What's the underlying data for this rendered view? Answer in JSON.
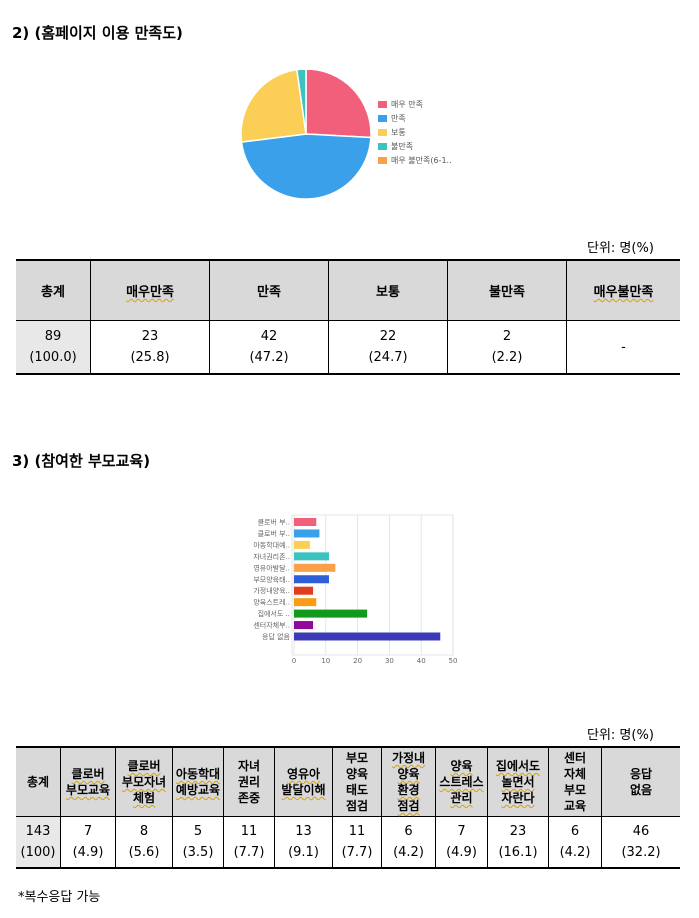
{
  "section1": {
    "heading": "2) (홈페이지 이용 만족도)",
    "unit": "단위:  명(%)",
    "table": {
      "headers": [
        "총계",
        "매우만족",
        "만족",
        "보통",
        "불만족",
        "매우불만족"
      ],
      "values": [
        "89",
        "23",
        "42",
        "22",
        "2",
        "-"
      ],
      "percents": [
        "(100.0)",
        "(25.8)",
        "(47.2)",
        "(24.7)",
        "(2.2)",
        ""
      ]
    }
  },
  "chart1": {
    "legend": [
      "매우 만족",
      "만족",
      "보통",
      "불만족",
      "매우 불만족(6-1.."
    ]
  },
  "section2": {
    "heading": "3) (참여한 부모교육)",
    "unit": "단위:  명(%)",
    "table": {
      "headers": [
        [
          "총계"
        ],
        [
          "클로버",
          "부모교육"
        ],
        [
          "클로버",
          "부모자녀",
          "체험"
        ],
        [
          "아동학대",
          "예방교육"
        ],
        [
          "자녀",
          "권리",
          "존중"
        ],
        [
          "영유아",
          "발달이해"
        ],
        [
          "부모",
          "양육",
          "태도",
          "점검"
        ],
        [
          "가정내",
          "양육",
          "환경",
          "점검"
        ],
        [
          "양육",
          "스트레스",
          "관리"
        ],
        [
          "집에서도",
          "놀면서",
          "자란다"
        ],
        [
          "센터",
          "자체",
          "부모",
          "교육"
        ],
        [
          "응답",
          "없음"
        ]
      ],
      "values": [
        "143",
        "7",
        "8",
        "5",
        "11",
        "13",
        "11",
        "6",
        "7",
        "23",
        "6",
        "46"
      ],
      "percents": [
        "(100)",
        "(4.9)",
        "(5.6)",
        "(3.5)",
        "(7.7)",
        "(9.1)",
        "(7.7)",
        "(4.2)",
        "(4.9)",
        "(16.1)",
        "(4.2)",
        "(32.2)"
      ]
    }
  },
  "chart2": {
    "labels": [
      "클로버 부..",
      "클로버 부..",
      "아동학대예..",
      "자녀권리존..",
      "영유아발달..",
      "부모양육태..",
      "가정내양육..",
      "양육스트레..",
      "집에서도 ..",
      "센터자체부..",
      "응답 없음"
    ],
    "ticks": [
      "0",
      "10",
      "20",
      "30",
      "40",
      "50"
    ]
  },
  "chart_data": [
    {
      "type": "pie",
      "categories": [
        "매우 만족",
        "만족",
        "보통",
        "불만족",
        "매우 불만족(6-1.."
      ],
      "values": [
        23,
        42,
        22,
        2,
        0
      ],
      "colors": [
        "#f25f7a",
        "#3aa0ea",
        "#fbcf55",
        "#3cc3bf",
        "#f9a04a"
      ],
      "legend": "right"
    },
    {
      "type": "bar",
      "orientation": "horizontal",
      "categories": [
        "클로버 부..",
        "클로버 부..",
        "아동학대예..",
        "자녀권리존..",
        "영유아발달..",
        "부모양육태..",
        "가정내양육..",
        "양육스트레..",
        "집에서도 ..",
        "센터자체부..",
        "응답 없음"
      ],
      "values": [
        7,
        8,
        5,
        11,
        13,
        11,
        6,
        7,
        23,
        6,
        46
      ],
      "colors": [
        "#f25f7a",
        "#3aa0ea",
        "#fbcf55",
        "#3cc3bf",
        "#f9a04a",
        "#2f5fd4",
        "#e03c1e",
        "#f99d16",
        "#129a1c",
        "#8e0a9a",
        "#3b3bb8"
      ],
      "xlim": [
        0,
        50
      ],
      "grid": true
    }
  ],
  "footnote": "*복수응답 가능"
}
